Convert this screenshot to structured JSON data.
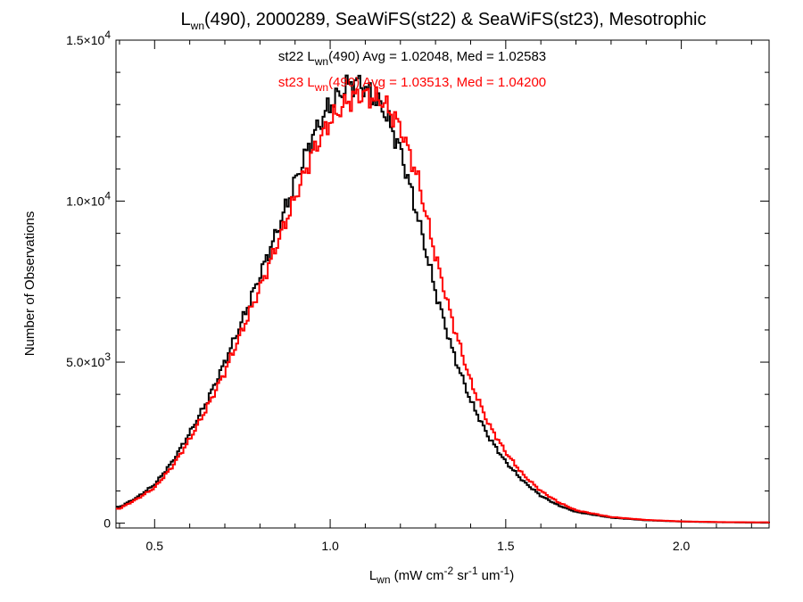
{
  "chart_data": {
    "type": "line",
    "step": true,
    "title": {
      "prefix": "L",
      "sub": "wn",
      "rest": "(490), 2000289, SeaWiFS(st22) & SeaWiFS(st23), Mesotrophic"
    },
    "xlabel": {
      "prefix": "L",
      "sub": "wn",
      "rest": " (mW cm",
      "sup1": "-2",
      "mid1": " sr",
      "sup2": "-1",
      "mid2": " um",
      "sup3": "-1",
      "end": ")"
    },
    "ylabel": "Number of Observations",
    "xlim": [
      0.39,
      2.25
    ],
    "ylim": [
      -150,
      15000
    ],
    "x_ticks": [
      {
        "value": 0.5,
        "label": "0.5"
      },
      {
        "value": 1.0,
        "label": "1.0"
      },
      {
        "value": 1.5,
        "label": "1.5"
      },
      {
        "value": 2.0,
        "label": "2.0"
      }
    ],
    "y_ticks": [
      {
        "value": 0,
        "mant": "0",
        "exp": ""
      },
      {
        "value": 5000,
        "mant": "5.0×10",
        "exp": "3"
      },
      {
        "value": 10000,
        "mant": "1.0×10",
        "exp": "4"
      },
      {
        "value": 15000,
        "mant": "1.5×10",
        "exp": "4"
      }
    ],
    "grid": false,
    "legend_position": "top-center",
    "series": [
      {
        "name": "st22",
        "color": "#000000",
        "legend": {
          "prefix": "st22 L",
          "sub": "wn",
          "rest": "(490) Avg = 1.02048, Med = 1.02583"
        },
        "x": [
          0.4,
          0.45,
          0.5,
          0.55,
          0.6,
          0.65,
          0.7,
          0.75,
          0.8,
          0.85,
          0.9,
          0.95,
          1.0,
          1.05,
          1.08,
          1.1,
          1.15,
          1.2,
          1.25,
          1.3,
          1.35,
          1.4,
          1.45,
          1.5,
          1.55,
          1.6,
          1.65,
          1.7,
          1.8,
          1.9,
          2.0,
          2.1,
          2.2
        ],
        "y": [
          500,
          800,
          1200,
          1900,
          2800,
          3800,
          5000,
          6300,
          7700,
          9100,
          10600,
          12000,
          13000,
          13600,
          13700,
          13500,
          12900,
          11600,
          9500,
          7200,
          5300,
          3800,
          2700,
          1900,
          1300,
          850,
          550,
          350,
          170,
          90,
          50,
          30,
          20
        ]
      },
      {
        "name": "st23",
        "color": "#ff0000",
        "legend": {
          "prefix": "st23 L",
          "sub": "wn",
          "rest": "(490) Avg = 1.03513, Med = 1.04200"
        },
        "x": [
          0.4,
          0.45,
          0.5,
          0.55,
          0.6,
          0.65,
          0.7,
          0.75,
          0.8,
          0.85,
          0.9,
          0.95,
          1.0,
          1.05,
          1.08,
          1.1,
          1.15,
          1.2,
          1.25,
          1.3,
          1.35,
          1.4,
          1.45,
          1.5,
          1.55,
          1.6,
          1.65,
          1.7,
          1.8,
          1.9,
          2.0,
          2.1,
          2.2
        ],
        "y": [
          450,
          750,
          1100,
          1750,
          2600,
          3600,
          4700,
          6000,
          7300,
          8700,
          10100,
          11500,
          12500,
          13100,
          13300,
          13300,
          13100,
          12300,
          10700,
          8300,
          6200,
          4400,
          3100,
          2200,
          1500,
          1000,
          650,
          400,
          190,
          100,
          55,
          35,
          25
        ]
      }
    ]
  }
}
